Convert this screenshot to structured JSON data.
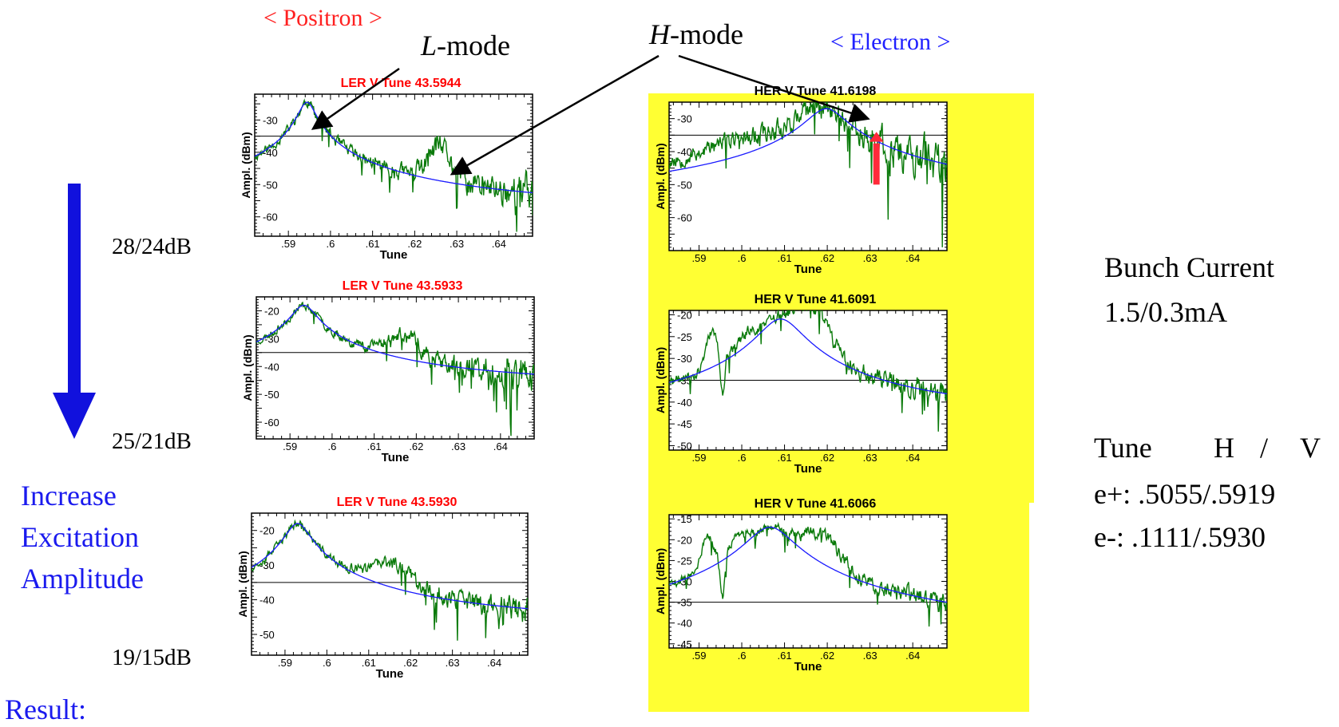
{
  "labels": {
    "positron": "< Positron >",
    "electron": "< Electron >",
    "l_mode_italic": "L",
    "l_mode_rest": "-mode",
    "h_mode_italic": "H",
    "h_mode_rest": "-mode",
    "att_1": "28/24dB",
    "att_2": "25/21dB",
    "att_3": "19/15dB",
    "increase_1": "Increase",
    "increase_2": "Excitation",
    "increase_3": "Amplitude",
    "result": "Result:",
    "bunch_1": "Bunch Current",
    "bunch_2": "1.5/0.3mA",
    "tune_header_1": "Tune",
    "tune_header_2": "H",
    "tune_header_3": "/",
    "tune_header_4": "V",
    "tune_eplus": "e+: .5055/.5919",
    "tune_eminus": "e-: .1111/.5930"
  },
  "colors": {
    "positron_label": "#ff2020",
    "electron_label": "#2020ff",
    "increase_text": "#1a1aee",
    "result_text": "#1a1aee",
    "big_arrow": "#1111dd",
    "red_arrow": "#ff2a3a",
    "panel_yellow": "#ffff33",
    "measured_trace": "#0a7a0a",
    "fit_trace": "#1a1aff",
    "ref_line": "#000000",
    "ler_title": "#ff0000",
    "her_title": "#000000"
  },
  "chart_data": [
    {
      "id": "ler1",
      "type": "line",
      "title": "LER V Tune  43.5944",
      "xlabel": "Tune",
      "ylabel": "Ampl. (dBm)",
      "xlim": [
        0.582,
        0.648
      ],
      "ylim": [
        -66,
        -22
      ],
      "x_ticks": [
        0.59,
        0.6,
        0.61,
        0.62,
        0.63,
        0.64
      ],
      "x_tick_labels": [
        ".59",
        ".6",
        ".61",
        ".62",
        ".63",
        ".64"
      ],
      "y_ticks": [
        -30,
        -40,
        -50,
        -60
      ],
      "y_tick_labels": [
        "-30",
        "-40",
        "-50",
        "-60"
      ],
      "ref_level": -35,
      "fit": {
        "f0": 0.5944,
        "peak": -24.5,
        "w": 0.0018,
        "floor": -58,
        "slope": 0
      },
      "measured": {
        "extras": [
          [
            0.626,
            10,
            0.004
          ]
        ],
        "noise": 1.5,
        "noise_grow": 4,
        "seed": 11
      }
    },
    {
      "id": "ler2",
      "type": "line",
      "title": "LER V Tune  43.5933",
      "xlabel": "Tune",
      "ylabel": "Ampl. (dBm)",
      "xlim": [
        0.582,
        0.648
      ],
      "ylim": [
        -66,
        -15
      ],
      "x_ticks": [
        0.59,
        0.6,
        0.61,
        0.62,
        0.63,
        0.64
      ],
      "x_tick_labels": [
        ".59",
        ".6",
        ".61",
        ".62",
        ".63",
        ".64"
      ],
      "y_ticks": [
        -20,
        -30,
        -40,
        -50,
        -60
      ],
      "y_tick_labels": [
        "-20",
        "-30",
        "-40",
        "-50",
        "-60"
      ],
      "ref_level": -35,
      "fit": {
        "f0": 0.5933,
        "peak": -18,
        "w": 0.0025,
        "floor": -47,
        "slope": 0
      },
      "measured": {
        "extras": [
          [
            0.617,
            8,
            0.006
          ]
        ],
        "noise": 1.3,
        "noise_grow": 5,
        "seed": 23
      }
    },
    {
      "id": "ler3",
      "type": "line",
      "title": "LER V Tune  43.5930",
      "xlabel": "Tune",
      "ylabel": "Ampl. (dBm)",
      "xlim": [
        0.582,
        0.648
      ],
      "ylim": [
        -56,
        -15
      ],
      "x_ticks": [
        0.59,
        0.6,
        0.61,
        0.62,
        0.63,
        0.64
      ],
      "x_tick_labels": [
        ".59",
        ".6",
        ".61",
        ".62",
        ".63",
        ".64"
      ],
      "y_ticks": [
        -20,
        -30,
        -40,
        -50
      ],
      "y_tick_labels": [
        "-20",
        "-30",
        "-40",
        "-50"
      ],
      "ref_level": -35,
      "fit": {
        "f0": 0.593,
        "peak": -18,
        "w": 0.0026,
        "floor": -47,
        "slope": 0
      },
      "measured": {
        "extras": [
          [
            0.616,
            7,
            0.007
          ]
        ],
        "noise": 1.1,
        "noise_grow": 4,
        "seed": 37
      }
    },
    {
      "id": "her1",
      "type": "line",
      "title": "HER V Tune  41.6198",
      "xlabel": "Tune",
      "ylabel": "Ampl. (dBm)",
      "xlim": [
        0.583,
        0.648
      ],
      "ylim": [
        -70,
        -25
      ],
      "x_ticks": [
        0.59,
        0.6,
        0.61,
        0.62,
        0.63,
        0.64
      ],
      "x_tick_labels": [
        ".59",
        ".6",
        ".61",
        ".62",
        ".63",
        ".64"
      ],
      "y_ticks": [
        -30,
        -40,
        -50,
        -60
      ],
      "y_tick_labels": [
        "-30",
        "-40",
        "-50",
        "-60"
      ],
      "ref_level": -35,
      "fit": {
        "f0": 0.6198,
        "peak": -27,
        "w": 0.004,
        "floor": -57,
        "slope": 0
      },
      "measured": {
        "extras": [
          [
            0.598,
            3,
            0.01
          ]
        ],
        "noise": 2.4,
        "noise_grow": 3,
        "seed": 53,
        "step_at": 0.619
      },
      "annotation_arrow_x": 0.6315
    },
    {
      "id": "her2",
      "type": "line",
      "title": "HER V Tune  41.6091",
      "xlabel": "Tune",
      "ylabel": "Ampl. (dBm)",
      "xlim": [
        0.583,
        0.648
      ],
      "ylim": [
        -51,
        -19
      ],
      "x_ticks": [
        0.59,
        0.6,
        0.61,
        0.62,
        0.63,
        0.64
      ],
      "x_tick_labels": [
        ".59",
        ".6",
        ".61",
        ".62",
        ".63",
        ".64"
      ],
      "y_ticks": [
        -20,
        -25,
        -30,
        -35,
        -40,
        -45,
        -50
      ],
      "y_tick_labels": [
        "-20",
        "-25",
        "-30",
        "-35",
        "-40",
        "-45",
        "-50"
      ],
      "ref_level": -35,
      "fit": {
        "f0": 0.6091,
        "peak": -21,
        "w": 0.0045,
        "floor": -43,
        "slope": 0
      },
      "measured": {
        "extras": [
          [
            0.593,
            8,
            0.002
          ],
          [
            0.617,
            9,
            0.005
          ],
          [
            0.601,
            3,
            0.004
          ]
        ],
        "noise": 1.2,
        "noise_grow": 2.5,
        "seed": 71,
        "dip_at": 0.5955
      },
      "annotation_arrow_x": null
    },
    {
      "id": "her3",
      "type": "line",
      "title": "HER V Tune  41.6066",
      "xlabel": "Tune",
      "ylabel": "Ampl. (dBm)",
      "xlim": [
        0.583,
        0.648
      ],
      "ylim": [
        -46,
        -14
      ],
      "x_ticks": [
        0.59,
        0.6,
        0.61,
        0.62,
        0.63,
        0.64
      ],
      "x_tick_labels": [
        ".59",
        ".6",
        ".61",
        ".62",
        ".63",
        ".64"
      ],
      "y_ticks": [
        -15,
        -20,
        -25,
        -30,
        -35,
        -40,
        -45
      ],
      "y_tick_labels": [
        "-15",
        "-20",
        "-25",
        "-30",
        "-35",
        "-40",
        "-45"
      ],
      "ref_level": -35,
      "fit": {
        "f0": 0.6066,
        "peak": -17,
        "w": 0.0048,
        "floor": -43,
        "slope": 0
      },
      "measured": {
        "extras": [
          [
            0.592,
            8,
            0.002
          ],
          [
            0.619,
            7,
            0.006
          ],
          [
            0.599,
            3,
            0.003
          ]
        ],
        "noise": 1.1,
        "noise_grow": 2.5,
        "seed": 89,
        "dip_at": 0.5955
      },
      "annotation_arrow_x": null
    }
  ]
}
